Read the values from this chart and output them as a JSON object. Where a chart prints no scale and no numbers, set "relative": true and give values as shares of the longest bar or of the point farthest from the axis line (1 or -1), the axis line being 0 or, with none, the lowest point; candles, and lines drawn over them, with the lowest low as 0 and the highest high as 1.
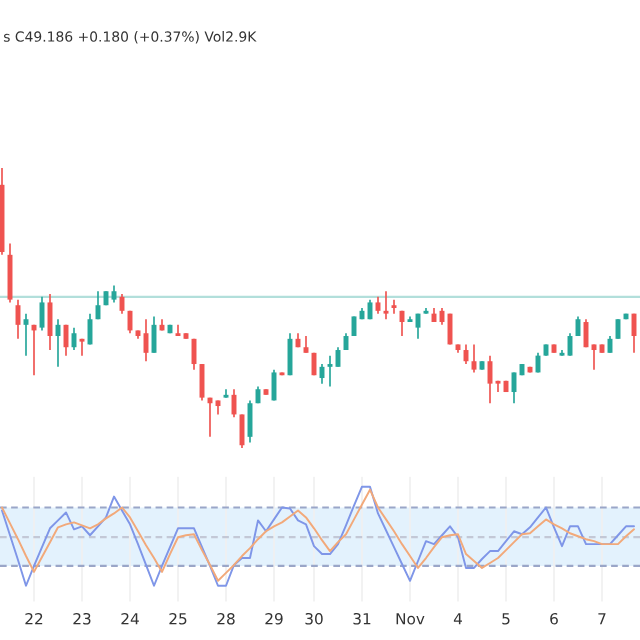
{
  "chart_data": [
    {
      "type": "candlestick",
      "relative": true,
      "annotations": [
        "s C49.186 +0.180 (+0.37%) Vol2.9K"
      ],
      "categories": [
        null,
        null,
        null,
        null,
        null,
        null,
        null,
        null,
        null,
        null,
        null,
        null,
        null,
        null,
        null,
        null,
        null,
        null,
        null,
        null,
        null,
        null,
        null,
        null,
        null,
        null,
        null,
        null,
        null,
        null,
        null,
        null,
        null,
        null,
        null,
        null,
        null,
        null,
        null,
        null,
        null,
        null,
        null,
        null,
        null,
        null,
        null,
        null,
        null,
        null,
        null,
        null,
        null,
        null,
        null,
        null,
        null,
        null,
        null,
        null,
        null,
        null,
        null,
        null,
        null,
        null,
        null,
        null,
        null,
        null,
        null,
        null,
        null,
        null,
        null,
        null,
        null,
        null,
        null,
        null
      ],
      "ref_lines": [
        {
          "axis": "y",
          "value": 0.54,
          "color": "#b2dfdb"
        }
      ],
      "ohlc": [
        [
          0.94,
          1.0,
          0.69,
          0.7
        ],
        [
          0.69,
          0.73,
          0.52,
          0.53
        ],
        [
          0.51,
          0.53,
          0.39,
          0.44
        ],
        [
          0.44,
          0.48,
          0.33,
          0.46
        ],
        [
          0.44,
          0.44,
          0.26,
          0.42
        ],
        [
          0.43,
          0.54,
          0.42,
          0.52
        ],
        [
          0.52,
          0.55,
          0.35,
          0.4
        ],
        [
          0.4,
          0.46,
          0.29,
          0.44
        ],
        [
          0.44,
          0.44,
          0.33,
          0.36
        ],
        [
          0.36,
          0.43,
          0.35,
          0.41
        ],
        [
          0.39,
          0.39,
          0.33,
          0.38
        ],
        [
          0.37,
          0.48,
          0.37,
          0.46
        ],
        [
          0.46,
          0.56,
          0.46,
          0.51
        ],
        [
          0.51,
          0.56,
          0.51,
          0.56
        ],
        [
          0.53,
          0.58,
          0.52,
          0.56
        ],
        [
          0.54,
          0.55,
          0.48,
          0.49
        ],
        [
          0.49,
          0.49,
          0.41,
          0.42
        ],
        [
          0.42,
          0.42,
          0.39,
          0.4
        ],
        [
          0.41,
          0.46,
          0.31,
          0.34
        ],
        [
          0.34,
          0.47,
          0.34,
          0.44
        ],
        [
          0.44,
          0.46,
          0.42,
          0.42
        ],
        [
          0.41,
          0.44,
          0.41,
          0.44
        ],
        [
          0.41,
          0.44,
          0.4,
          0.4
        ],
        [
          0.41,
          0.41,
          0.39,
          0.39
        ],
        [
          0.39,
          0.39,
          0.28,
          0.3
        ],
        [
          0.3,
          0.3,
          0.17,
          0.18
        ],
        [
          0.18,
          0.18,
          0.04,
          0.16
        ],
        [
          0.17,
          0.17,
          0.12,
          0.15
        ],
        [
          0.18,
          0.21,
          0.18,
          0.19
        ],
        [
          0.19,
          0.21,
          0.11,
          0.12
        ],
        [
          0.12,
          0.12,
          0,
          0.01
        ],
        [
          0.04,
          0.17,
          0.02,
          0.16
        ],
        [
          0.16,
          0.22,
          0.16,
          0.21
        ],
        [
          0.21,
          0.21,
          0.19,
          0.19
        ],
        [
          0.17,
          0.28,
          0.17,
          0.27
        ],
        [
          0.27,
          0.27,
          0.26,
          0.26
        ],
        [
          0.26,
          0.41,
          0.26,
          0.39
        ],
        [
          0.39,
          0.41,
          0.36,
          0.36
        ],
        [
          0.36,
          0.4,
          0.34,
          0.34
        ],
        [
          0.34,
          0.34,
          0.26,
          0.26
        ],
        [
          0.25,
          0.3,
          0.23,
          0.29
        ],
        [
          0.29,
          0.33,
          0.22,
          0.3
        ],
        [
          0.29,
          0.36,
          0.29,
          0.35
        ],
        [
          0.35,
          0.41,
          0.35,
          0.4
        ],
        [
          0.4,
          0.47,
          0.4,
          0.47
        ],
        [
          0.46,
          0.5,
          0.46,
          0.49
        ],
        [
          0.46,
          0.53,
          0.46,
          0.52
        ],
        [
          0.52,
          0.54,
          0.48,
          0.49
        ],
        [
          0.49,
          0.56,
          0.46,
          0.48
        ],
        [
          0.51,
          0.53,
          0.48,
          0.5
        ],
        [
          0.49,
          0.49,
          0.4,
          0.45
        ],
        [
          0.45,
          0.47,
          0.45,
          0.46
        ],
        [
          0.43,
          0.48,
          0.39,
          0.48
        ],
        [
          0.48,
          0.5,
          0.48,
          0.49
        ],
        [
          0.48,
          0.5,
          0.45,
          0.45
        ],
        [
          0.49,
          0.5,
          0.44,
          0.45
        ],
        [
          0.48,
          0.48,
          0.37,
          0.37
        ],
        [
          0.37,
          0.37,
          0.34,
          0.35
        ],
        [
          0.35,
          0.37,
          0.3,
          0.31
        ],
        [
          0.31,
          0.37,
          0.27,
          0.28
        ],
        [
          0.28,
          0.31,
          0.28,
          0.31
        ],
        [
          0.31,
          0.33,
          0.16,
          0.23
        ],
        [
          0.24,
          0.24,
          0.2,
          0.23
        ],
        [
          0.24,
          0.24,
          0.2,
          0.2
        ],
        [
          0.2,
          0.27,
          0.16,
          0.27
        ],
        [
          0.26,
          0.3,
          0.26,
          0.3
        ],
        [
          0.29,
          0.29,
          0.27,
          0.27
        ],
        [
          0.27,
          0.34,
          0.27,
          0.33
        ],
        [
          0.33,
          0.37,
          0.33,
          0.37
        ],
        [
          0.37,
          0.37,
          0.34,
          0.34
        ],
        [
          0.33,
          0.35,
          0.33,
          0.34
        ],
        [
          0.33,
          0.41,
          0.33,
          0.4
        ],
        [
          0.4,
          0.47,
          0.4,
          0.46
        ],
        [
          0.45,
          0.46,
          0.36,
          0.36
        ],
        [
          0.37,
          0.37,
          0.28,
          0.35
        ],
        [
          0.37,
          0.37,
          0.34,
          0.34
        ],
        [
          0.34,
          0.4,
          0.34,
          0.39
        ],
        [
          0.39,
          0.46,
          0.39,
          0.46
        ],
        [
          0.46,
          0.48,
          0.46,
          0.48
        ],
        [
          0.48,
          0.48,
          0.34,
          0.4
        ]
      ],
      "colors": [
        "#ef5350",
        "#ef5350",
        "#ef5350",
        "#26a69a",
        "#ef5350",
        "#26a69a",
        "#ef5350",
        "#26a69a",
        "#ef5350",
        "#26a69a",
        "#ef5350",
        "#26a69a",
        "#26a69a",
        "#26a69a",
        "#26a69a",
        "#ef5350",
        "#ef5350",
        "#ef5350",
        "#ef5350",
        "#26a69a",
        "#ef5350",
        "#26a69a",
        "#ef5350",
        "#ef5350",
        "#ef5350",
        "#ef5350",
        "#ef5350",
        "#ef5350",
        "#26a69a",
        "#ef5350",
        "#ef5350",
        "#26a69a",
        "#26a69a",
        "#ef5350",
        "#26a69a",
        "#ef5350",
        "#26a69a",
        "#ef5350",
        "#ef5350",
        "#ef5350",
        "#26a69a",
        "#26a69a",
        "#26a69a",
        "#26a69a",
        "#26a69a",
        "#26a69a",
        "#26a69a",
        "#ef5350",
        "#ef5350",
        "#ef5350",
        "#ef5350",
        "#26a69a",
        "#26a69a",
        "#26a69a",
        "#ef5350",
        "#ef5350",
        "#ef5350",
        "#ef5350",
        "#ef5350",
        "#ef5350",
        "#26a69a",
        "#ef5350",
        "#ef5350",
        "#ef5350",
        "#26a69a",
        "#26a69a",
        "#ef5350",
        "#26a69a",
        "#26a69a",
        "#ef5350",
        "#26a69a",
        "#26a69a",
        "#26a69a",
        "#ef5350",
        "#ef5350",
        "#ef5350",
        "#26a69a",
        "#26a69a",
        "#26a69a",
        "#ef5350"
      ]
    },
    {
      "type": "line",
      "relative": true,
      "grid": "x",
      "categories": [
        null,
        null,
        null,
        null,
        "22",
        null,
        null,
        null,
        null,
        null,
        "23",
        null,
        null,
        null,
        null,
        null,
        "24",
        null,
        null,
        null,
        null,
        null,
        "25",
        null,
        null,
        null,
        null,
        null,
        "28",
        null,
        null,
        null,
        null,
        null,
        "29",
        null,
        null,
        null,
        null,
        "30",
        null,
        null,
        null,
        null,
        null,
        "31",
        null,
        null,
        null,
        null,
        null,
        "Nov",
        null,
        null,
        null,
        null,
        null,
        "4",
        null,
        null,
        null,
        null,
        null,
        "5",
        null,
        null,
        null,
        null,
        null,
        "6",
        null,
        null,
        null,
        null,
        null,
        "7",
        null,
        null,
        null,
        null
      ],
      "bands": [
        {
          "axis": "y",
          "from": 0.2,
          "to": 0.79,
          "color": "#e3f2fd"
        }
      ],
      "ref_lines": [
        {
          "axis": "y",
          "value": 0.2,
          "color": "#9aa6c8",
          "line_style": "dashed"
        },
        {
          "axis": "y",
          "value": 0.49,
          "color": "#c3c8d6",
          "line_style": "dashed"
        },
        {
          "axis": "y",
          "value": 0.79,
          "color": "#9aa6c8",
          "line_style": "dashed"
        }
      ],
      "series": [
        {
          "color": "#7f96e8",
          "values": [
            0.76,
            0.51,
            0.26,
            0,
            0.2,
            0.39,
            0.58,
            0.66,
            0.74,
            0.57,
            0.6,
            0.51,
            0.6,
            0.69,
            0.9,
            0.76,
            0.62,
            0.42,
            0.21,
            0,
            0.2,
            0.39,
            0.58,
            0.58,
            0.58,
            0.39,
            0.2,
            0,
            0,
            0.21,
            0.28,
            0.28,
            0.66,
            0.55,
            0.67,
            0.79,
            0.78,
            0.66,
            0.62,
            0.4,
            0.32,
            0.32,
            0.42,
            0.61,
            0.81,
            1.0,
            1.0,
            0.73,
            0.56,
            0.39,
            0.22,
            0.05,
            0.25,
            0.45,
            0.42,
            0.51,
            0.6,
            0.49,
            0.18,
            0.18,
            0.27,
            0.35,
            0.35,
            0.45,
            0.55,
            0.52,
            0.59,
            0.69,
            0.79,
            0.59,
            0.4,
            0.6,
            0.6,
            0.42,
            0.42,
            0.42,
            0.42,
            0.51,
            0.6,
            0.6
          ]
        },
        {
          "color": "#f2a97a",
          "values": [
            0.79,
            0.63,
            0.47,
            0.3,
            0.14,
            0.29,
            0.44,
            0.59,
            0.62,
            0.64,
            0.61,
            0.58,
            0.62,
            0.68,
            0.73,
            0.79,
            0.69,
            0.55,
            0.41,
            0.28,
            0.14,
            0.32,
            0.49,
            0.51,
            0.52,
            0.36,
            0.21,
            0.05,
            0.13,
            0.21,
            0.3,
            0.38,
            0.47,
            0.55,
            0.6,
            0.64,
            0.7,
            0.76,
            0.69,
            0.58,
            0.46,
            0.35,
            0.44,
            0.52,
            0.67,
            0.82,
            0.97,
            0.79,
            0.67,
            0.55,
            0.42,
            0.3,
            0.18,
            0.28,
            0.39,
            0.49,
            0.51,
            0.52,
            0.32,
            0.25,
            0.18,
            0.23,
            0.28,
            0.36,
            0.44,
            0.52,
            0.53,
            0.6,
            0.67,
            0.62,
            0.58,
            0.53,
            0.5,
            0.47,
            0.45,
            0.42,
            0.42,
            0.42,
            0.5,
            0.57
          ]
        }
      ]
    }
  ]
}
